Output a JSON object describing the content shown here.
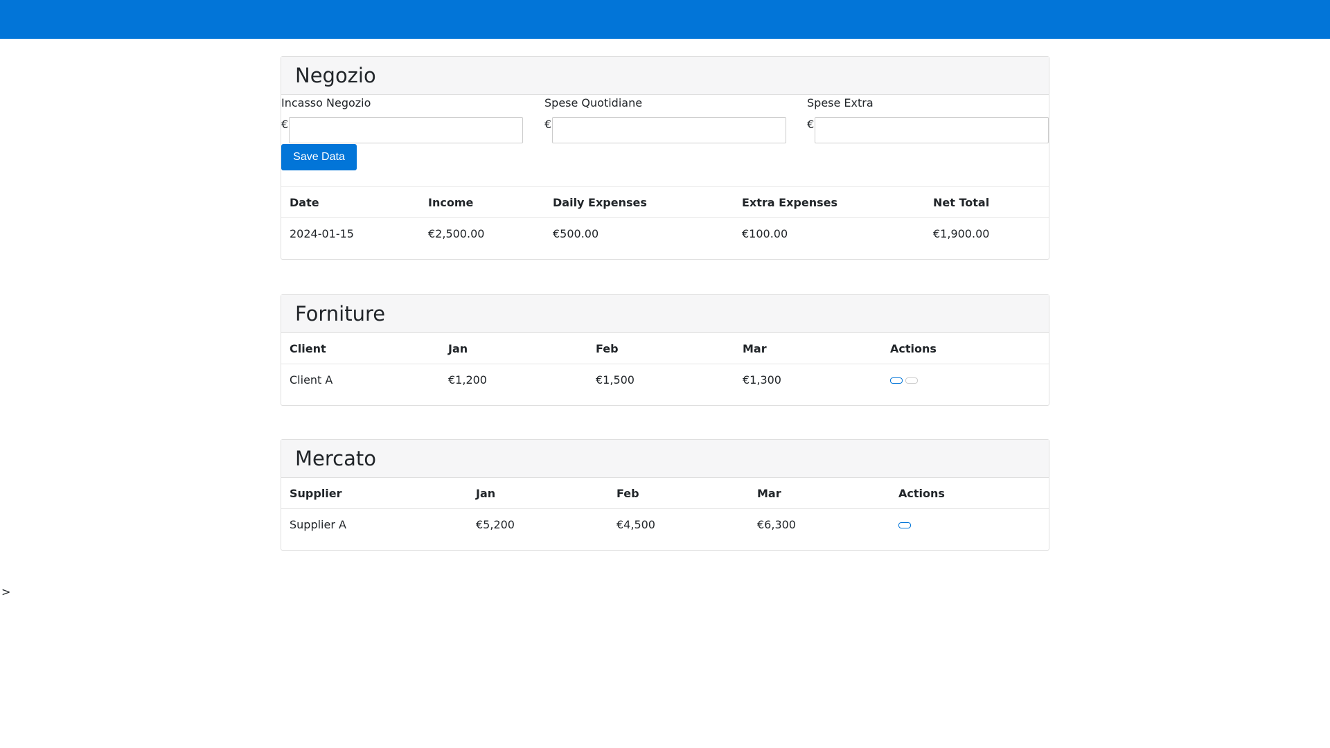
{
  "negozio": {
    "title": "Negozio",
    "fields": [
      {
        "label": "Incasso Negozio",
        "currency": "€"
      },
      {
        "label": "Spese Quotidiane",
        "currency": "€"
      },
      {
        "label": "Spese Extra",
        "currency": "€"
      }
    ],
    "button": "Save Data",
    "table": {
      "headers": [
        "Date",
        "Income",
        "Daily Expenses",
        "Extra Expenses",
        "Net Total"
      ],
      "rows": [
        [
          "2024-01-15",
          "€2,500.00",
          "€500.00",
          "€100.00",
          "€1,900.00"
        ]
      ]
    }
  },
  "forniture": {
    "title": "Forniture",
    "table": {
      "headers": [
        "Client",
        "Jan",
        "Feb",
        "Mar",
        "Actions"
      ],
      "rows": [
        [
          "Client A",
          "€1,200",
          "€1,500",
          "€1,300"
        ]
      ]
    }
  },
  "mercato": {
    "title": "Mercato",
    "table": {
      "headers": [
        "Supplier",
        "Jan",
        "Feb",
        "Mar",
        "Actions"
      ],
      "rows": [
        [
          "Supplier A",
          "€5,200",
          "€4,500",
          "€6,300"
        ]
      ]
    }
  },
  "footer": {
    "text": ">"
  }
}
